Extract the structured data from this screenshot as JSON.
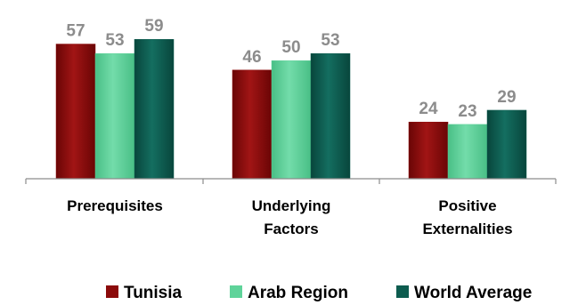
{
  "chart_data": {
    "type": "bar",
    "categories": [
      "Prerequisites",
      "Underlying Factors",
      "Positive Externalities"
    ],
    "category_lines": [
      [
        "Prerequisites"
      ],
      [
        "Underlying",
        "Factors"
      ],
      [
        "Positive",
        "Externalities"
      ]
    ],
    "series": [
      {
        "name": "Tunisia",
        "values": [
          57,
          46,
          24
        ],
        "color": "#8b0a0a"
      },
      {
        "name": "Arab Region",
        "values": [
          53,
          50,
          23
        ],
        "color": "#5fd39a"
      },
      {
        "name": "World Average",
        "values": [
          59,
          53,
          29
        ],
        "color": "#0d5c4f"
      }
    ],
    "ylim": [
      0,
      70
    ],
    "grid": false,
    "legend": "bottom",
    "title": "",
    "xlabel": "",
    "ylabel": ""
  }
}
